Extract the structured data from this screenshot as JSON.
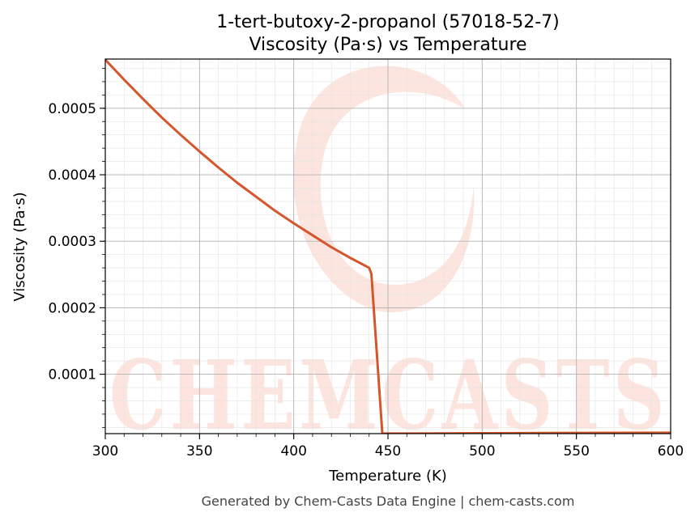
{
  "chart_data": {
    "type": "line",
    "title": "1-tert-butoxy-2-propanol (57018-52-7)",
    "subtitle": "Viscosity (Pa·s) vs Temperature",
    "xlabel": "Temperature (K)",
    "ylabel": "Viscosity (Pa·s)",
    "xlim": [
      300,
      600
    ],
    "ylim": [
      1.07e-05,
      0.000574
    ],
    "x_ticks": [
      300,
      350,
      400,
      450,
      500,
      550,
      600
    ],
    "x_tick_labels": [
      "300",
      "350",
      "400",
      "450",
      "500",
      "550",
      "600"
    ],
    "y_ticks": [
      0.0001,
      0.0002,
      0.0003,
      0.0004,
      0.0005
    ],
    "y_tick_labels": [
      "0.0001",
      "0.0002",
      "0.0003",
      "0.0004",
      "0.0005"
    ],
    "grid": true,
    "line_color": "#d4562a",
    "series": [
      {
        "x": [
          300,
          310,
          320,
          330,
          340,
          350,
          360,
          370,
          380,
          390,
          400,
          410,
          420,
          430,
          440,
          441.2,
          447,
          450,
          500,
          550,
          600
        ],
        "y": [
          0.000573,
          0.000543,
          0.000514,
          0.000486,
          0.00046,
          0.000435,
          0.000411,
          0.000388,
          0.000367,
          0.000346,
          0.000327,
          0.000309,
          0.000291,
          0.000275,
          0.00026,
          0.000251,
          1.07e-05,
          1.08e-05,
          1.13e-05,
          1.17e-05,
          1.21e-05
        ]
      }
    ]
  },
  "watermark": {
    "text": "CHEMCASTS",
    "color": "#fde0d9"
  },
  "footer": "Generated by Chem-Casts Data Engine | chem-casts.com"
}
